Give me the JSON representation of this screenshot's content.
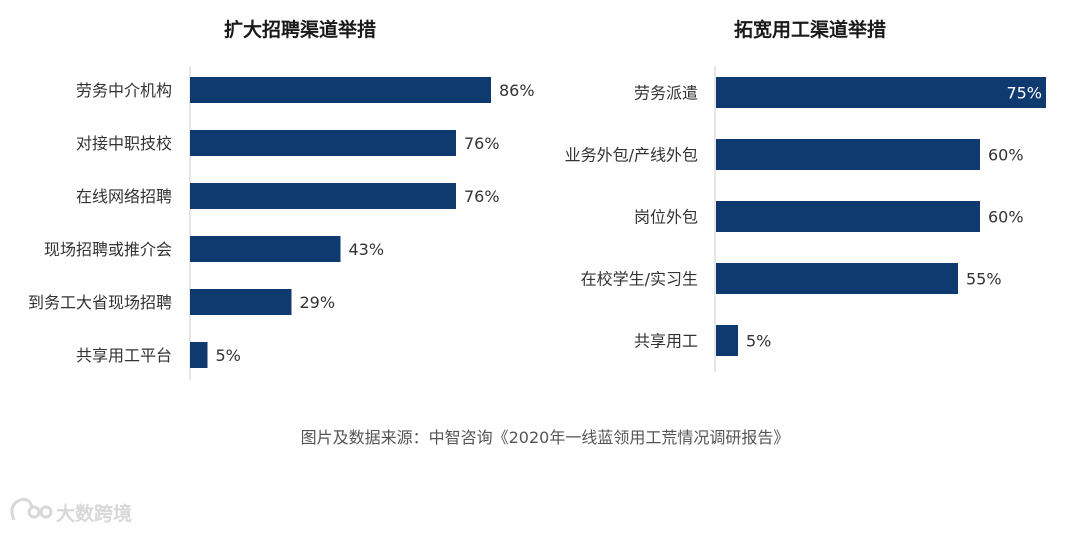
{
  "chart_data": [
    {
      "type": "bar",
      "orientation": "horizontal",
      "title": "扩大招聘渠道举措",
      "categories": [
        "劳务中介机构",
        "对接中职技校",
        "在线网络招聘",
        "现场招聘或推介会",
        "到务工大省现场招聘",
        "共享用工平台"
      ],
      "values": [
        86,
        76,
        76,
        43,
        29,
        5
      ],
      "value_labels": [
        "86%",
        "76%",
        "76%",
        "43%",
        "29%",
        "5%"
      ],
      "unit": "%",
      "xlim": [
        0,
        100
      ],
      "grid": false,
      "bar_color": "#0f3a6f"
    },
    {
      "type": "bar",
      "orientation": "horizontal",
      "title": "拓宽用工渠道举措",
      "categories": [
        "劳务派遣",
        "业务外包/产线外包",
        "岗位外包",
        "在校学生/实习生",
        "共享用工"
      ],
      "values": [
        75,
        60,
        60,
        55,
        5
      ],
      "value_labels": [
        "75%",
        "60%",
        "60%",
        "55%",
        "5%"
      ],
      "unit": "%",
      "xlim": [
        0,
        75
      ],
      "grid": false,
      "bar_color": "#0f3a6f"
    }
  ],
  "source_note": "图片及数据来源：中智咨询《2020年一线蓝领用工荒情况调研报告》",
  "watermark": {
    "text": "大数跨境",
    "icon": "logo-icon"
  },
  "colors": {
    "bar": "#0f3a6f",
    "axis": "#cfcfcf"
  }
}
